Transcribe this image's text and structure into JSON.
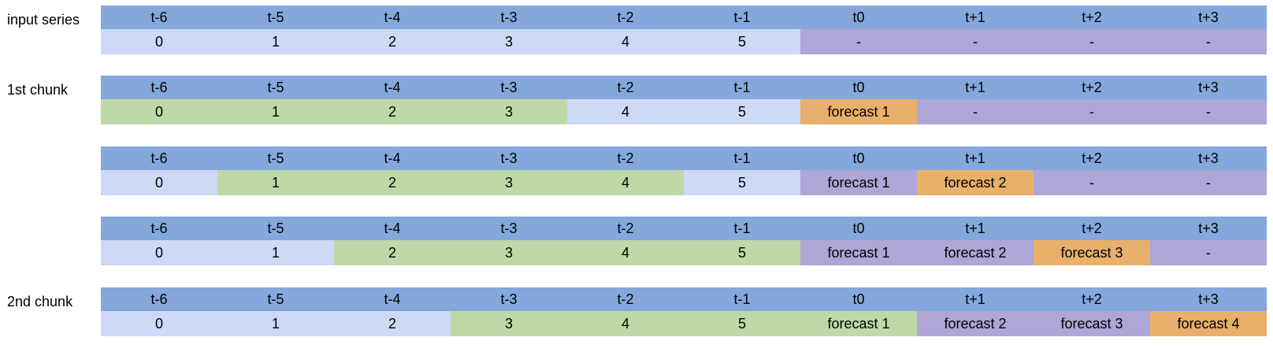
{
  "colors": {
    "header": "#84a8dc",
    "input": "#cdd9f5",
    "window": "#bfd8a8",
    "forecast": "#e8b06a",
    "future": "#ada6d6"
  },
  "headers": [
    "t-6",
    "t-5",
    "t-4",
    "t-3",
    "t-2",
    "t-1",
    "t0",
    "t+1",
    "t+2",
    "t+3"
  ],
  "rows": [
    {
      "label": "input series",
      "cells": [
        {
          "text": "0",
          "kind": "input"
        },
        {
          "text": "1",
          "kind": "input"
        },
        {
          "text": "2",
          "kind": "input"
        },
        {
          "text": "3",
          "kind": "input"
        },
        {
          "text": "4",
          "kind": "input"
        },
        {
          "text": "5",
          "kind": "input"
        },
        {
          "text": "-",
          "kind": "future"
        },
        {
          "text": "-",
          "kind": "future"
        },
        {
          "text": "-",
          "kind": "future"
        },
        {
          "text": "-",
          "kind": "future"
        }
      ]
    },
    {
      "label": "1st chunk",
      "cells": [
        {
          "text": "0",
          "kind": "window"
        },
        {
          "text": "1",
          "kind": "window"
        },
        {
          "text": "2",
          "kind": "window"
        },
        {
          "text": "3",
          "kind": "window"
        },
        {
          "text": "4",
          "kind": "input"
        },
        {
          "text": "5",
          "kind": "input"
        },
        {
          "text": "forecast 1",
          "kind": "forecast"
        },
        {
          "text": "-",
          "kind": "future"
        },
        {
          "text": "-",
          "kind": "future"
        },
        {
          "text": "-",
          "kind": "future"
        }
      ]
    },
    {
      "label": "",
      "cells": [
        {
          "text": "0",
          "kind": "input"
        },
        {
          "text": "1",
          "kind": "window"
        },
        {
          "text": "2",
          "kind": "window"
        },
        {
          "text": "3",
          "kind": "window"
        },
        {
          "text": "4",
          "kind": "window"
        },
        {
          "text": "5",
          "kind": "input"
        },
        {
          "text": "forecast 1",
          "kind": "future"
        },
        {
          "text": "forecast 2",
          "kind": "forecast"
        },
        {
          "text": "-",
          "kind": "future"
        },
        {
          "text": "-",
          "kind": "future"
        }
      ]
    },
    {
      "label": "",
      "cells": [
        {
          "text": "0",
          "kind": "input"
        },
        {
          "text": "1",
          "kind": "input"
        },
        {
          "text": "2",
          "kind": "window"
        },
        {
          "text": "3",
          "kind": "window"
        },
        {
          "text": "4",
          "kind": "window"
        },
        {
          "text": "5",
          "kind": "window"
        },
        {
          "text": "forecast 1",
          "kind": "future"
        },
        {
          "text": "forecast 2",
          "kind": "future"
        },
        {
          "text": "forecast 3",
          "kind": "forecast"
        },
        {
          "text": "-",
          "kind": "future"
        }
      ]
    },
    {
      "label": "2nd chunk",
      "cells": [
        {
          "text": "0",
          "kind": "input"
        },
        {
          "text": "1",
          "kind": "input"
        },
        {
          "text": "2",
          "kind": "input"
        },
        {
          "text": "3",
          "kind": "window"
        },
        {
          "text": "4",
          "kind": "window"
        },
        {
          "text": "5",
          "kind": "window"
        },
        {
          "text": "forecast 1",
          "kind": "window"
        },
        {
          "text": "forecast 2",
          "kind": "future"
        },
        {
          "text": "forecast 3",
          "kind": "future"
        },
        {
          "text": "forecast 4",
          "kind": "forecast"
        }
      ]
    }
  ]
}
